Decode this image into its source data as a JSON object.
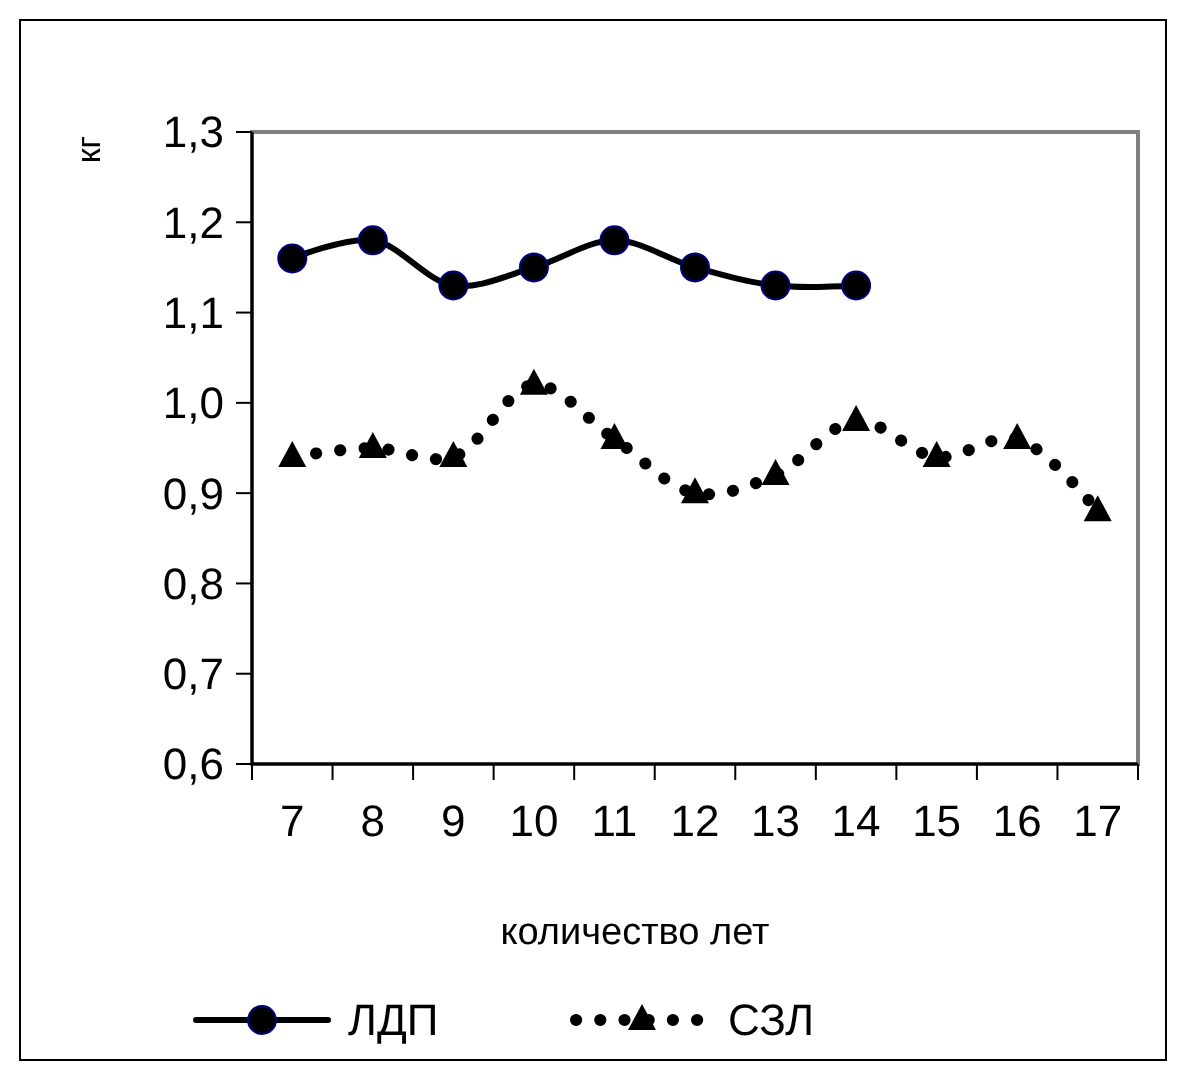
{
  "chart_data": {
    "type": "line",
    "xlabel": "количество лет",
    "ylabel": "кг",
    "categories": [
      "7",
      "8",
      "9",
      "10",
      "11",
      "12",
      "13",
      "14",
      "15",
      "16",
      "17"
    ],
    "ylim": [
      0.6,
      1.3
    ],
    "yticks": [
      {
        "value": 0.6,
        "label": "0,6"
      },
      {
        "value": 0.7,
        "label": "0,7"
      },
      {
        "value": 0.8,
        "label": "0,8"
      },
      {
        "value": 0.9,
        "label": "0,9"
      },
      {
        "value": 1.0,
        "label": "1,0"
      },
      {
        "value": 1.1,
        "label": "1,1"
      },
      {
        "value": 1.2,
        "label": "1,2"
      },
      {
        "value": 1.3,
        "label": "1,3"
      }
    ],
    "grid": false,
    "legend": "bottom",
    "series": [
      {
        "name": "ЛДП",
        "color": "#000000",
        "marker": "circle",
        "line_style": "solid",
        "values": [
          1.16,
          1.18,
          1.13,
          1.15,
          1.18,
          1.15,
          1.13,
          1.13,
          null,
          null,
          null
        ]
      },
      {
        "name": "СЗЛ",
        "color": "#000000",
        "marker": "triangle",
        "line_style": "dotted",
        "values": [
          0.94,
          0.95,
          0.94,
          1.02,
          0.96,
          0.9,
          0.92,
          0.98,
          0.94,
          0.96,
          0.88
        ]
      }
    ]
  }
}
